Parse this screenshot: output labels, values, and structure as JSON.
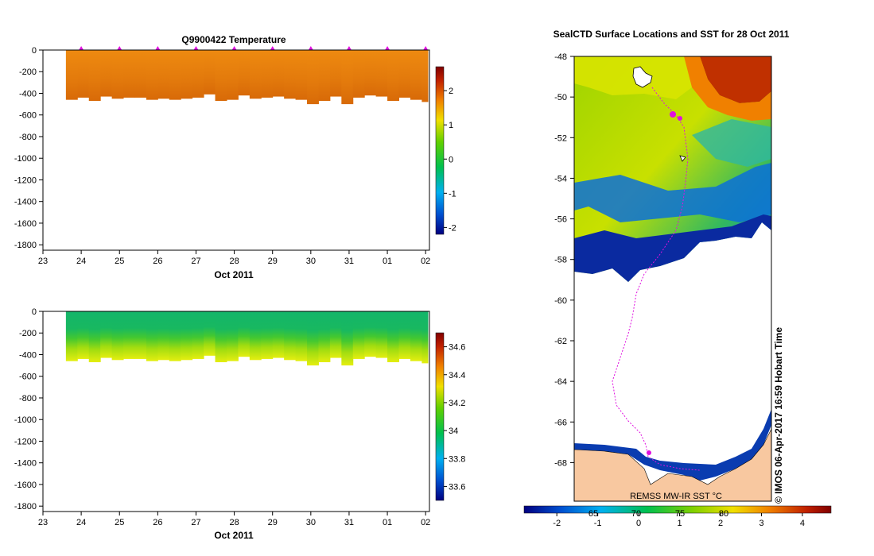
{
  "chart_data": [
    {
      "type": "heatmap",
      "title": "Q9900422  Temperature",
      "xlabel": "Oct 2011",
      "x_ticks": [
        "23",
        "24",
        "25",
        "26",
        "27",
        "28",
        "29",
        "30",
        "31",
        "01",
        "02"
      ],
      "y_ticks": [
        0,
        -200,
        -400,
        -600,
        -800,
        -1000,
        -1200,
        -1400,
        -1600,
        -1800
      ],
      "ylim": [
        -1850,
        0
      ],
      "xlim": [
        23,
        33.1
      ],
      "profile_start_day": 23.6,
      "profile_days": [
        23.6,
        23.9,
        24.2,
        24.5,
        24.8,
        25.1,
        25.4,
        25.7,
        26.0,
        26.3,
        26.6,
        26.9,
        27.2,
        27.5,
        27.8,
        28.1,
        28.4,
        28.7,
        29.0,
        29.3,
        29.6,
        29.9,
        30.2,
        30.5,
        30.8,
        31.1,
        31.4,
        31.7,
        32.0,
        32.3,
        32.6,
        32.9
      ],
      "profile_max_depth": [
        460,
        440,
        470,
        430,
        450,
        440,
        440,
        460,
        450,
        460,
        450,
        440,
        410,
        470,
        460,
        420,
        450,
        440,
        430,
        450,
        460,
        500,
        470,
        430,
        500,
        440,
        420,
        430,
        470,
        440,
        460,
        480
      ],
      "surface_markers_day": [
        24,
        25,
        26,
        27,
        28,
        29,
        30,
        31,
        32,
        33
      ],
      "colorbar": {
        "ticks": [
          2,
          1,
          0,
          -1,
          -2
        ],
        "min": -2.2,
        "max": 2.7
      }
    },
    {
      "type": "heatmap",
      "title": "",
      "xlabel": "Oct 2011",
      "x_ticks": [
        "23",
        "24",
        "25",
        "26",
        "27",
        "28",
        "29",
        "30",
        "31",
        "01",
        "02"
      ],
      "y_ticks": [
        0,
        -200,
        -400,
        -600,
        -800,
        -1000,
        -1200,
        -1400,
        -1600,
        -1800
      ],
      "ylim": [
        -1850,
        0
      ],
      "xlim": [
        23,
        33.1
      ],
      "colorbar": {
        "ticks": [
          34.6,
          34.4,
          34.2,
          34,
          33.8,
          33.6
        ],
        "min": 33.5,
        "max": 34.7
      }
    },
    {
      "type": "heatmap",
      "title": "SealCTD Surface Locations and SST for 28 Oct 2011",
      "y_ticks": [
        -48,
        -50,
        -52,
        -54,
        -56,
        -58,
        -60,
        -62,
        -64,
        -66,
        -68
      ],
      "ylim": [
        -69.9,
        -48
      ],
      "product_label": "REMSS MW-IR SST °C",
      "lon_labels": [
        "65",
        "70",
        "75",
        "80"
      ],
      "colorbar": {
        "ticks": [
          -2,
          -1,
          0,
          1,
          2,
          3,
          4
        ],
        "min": -2.8,
        "max": 4.7
      },
      "credit": "© IMOS 06-Apr-2017 16:59 Hobart Time"
    }
  ]
}
